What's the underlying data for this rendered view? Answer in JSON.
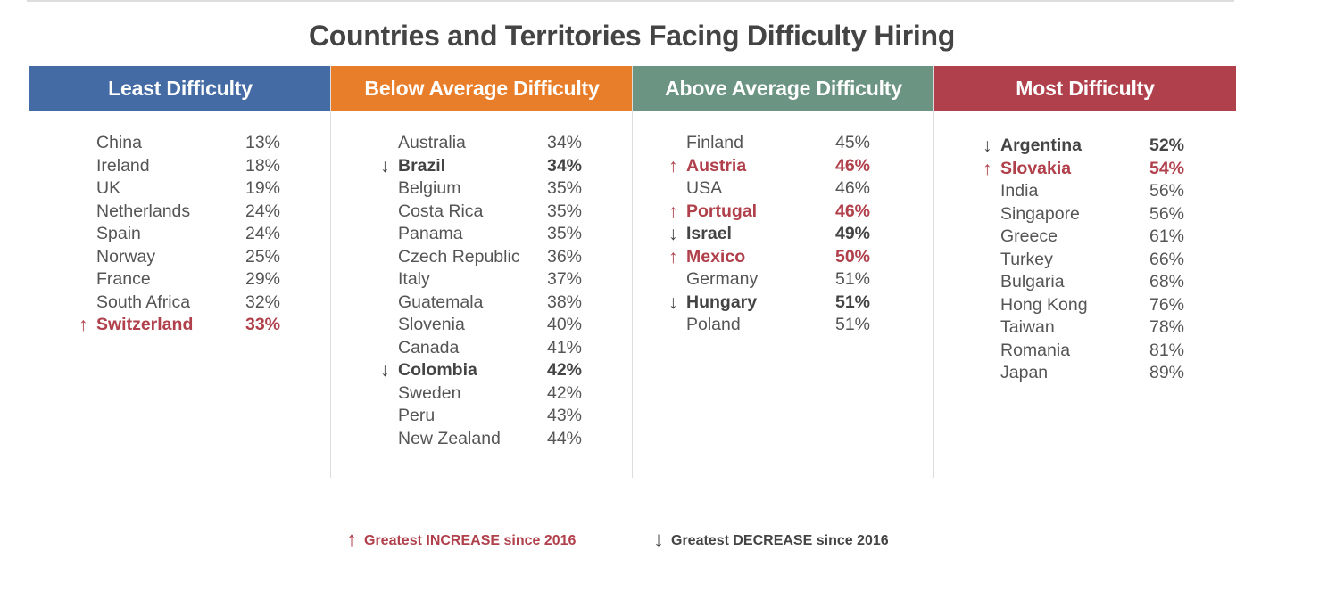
{
  "title": "Countries and Territories Facing Difficulty Hiring",
  "columns": [
    {
      "label": "Least Difficulty",
      "color": "#456ba5",
      "rows": [
        {
          "name": "China",
          "pct": "13%"
        },
        {
          "name": "Ireland",
          "pct": "18%"
        },
        {
          "name": "UK",
          "pct": "19%"
        },
        {
          "name": "Netherlands",
          "pct": "24%"
        },
        {
          "name": "Spain",
          "pct": "24%"
        },
        {
          "name": "Norway",
          "pct": "25%"
        },
        {
          "name": "France",
          "pct": "29%"
        },
        {
          "name": "South Africa",
          "pct": "32%"
        },
        {
          "name": "Switzerland",
          "pct": "33%",
          "trend": "up"
        }
      ]
    },
    {
      "label": "Below Average Difficulty",
      "color": "#e87e2a",
      "rows": [
        {
          "name": "Australia",
          "pct": "34%"
        },
        {
          "name": "Brazil",
          "pct": "34%",
          "trend": "down"
        },
        {
          "name": "Belgium",
          "pct": "35%"
        },
        {
          "name": "Costa Rica",
          "pct": "35%"
        },
        {
          "name": "Panama",
          "pct": "35%"
        },
        {
          "name": "Czech Republic",
          "pct": "36%"
        },
        {
          "name": "Italy",
          "pct": "37%"
        },
        {
          "name": "Guatemala",
          "pct": "38%"
        },
        {
          "name": "Slovenia",
          "pct": "40%"
        },
        {
          "name": "Canada",
          "pct": "41%"
        },
        {
          "name": "Colombia",
          "pct": "42%",
          "trend": "down"
        },
        {
          "name": "Sweden",
          "pct": "42%"
        },
        {
          "name": "Peru",
          "pct": "43%"
        },
        {
          "name": "New Zealand",
          "pct": "44%"
        }
      ]
    },
    {
      "label": "Above Average Difficulty",
      "color": "#6c9482",
      "rows": [
        {
          "name": "Finland",
          "pct": "45%"
        },
        {
          "name": "Austria",
          "pct": "46%",
          "trend": "up"
        },
        {
          "name": "USA",
          "pct": "46%"
        },
        {
          "name": "Portugal",
          "pct": "46%",
          "trend": "up"
        },
        {
          "name": "Israel",
          "pct": "49%",
          "trend": "down"
        },
        {
          "name": "Mexico",
          "pct": "50%",
          "trend": "up"
        },
        {
          "name": "Germany",
          "pct": "51%"
        },
        {
          "name": "Hungary",
          "pct": "51%",
          "trend": "down"
        },
        {
          "name": "Poland",
          "pct": "51%"
        }
      ]
    },
    {
      "label": "Most Difficulty",
      "color": "#b0404b",
      "rows": [
        {
          "name": "Argentina",
          "pct": "52%",
          "trend": "down"
        },
        {
          "name": "Slovakia",
          "pct": "54%",
          "trend": "up"
        },
        {
          "name": "India",
          "pct": "56%"
        },
        {
          "name": "Singapore",
          "pct": "56%"
        },
        {
          "name": "Greece",
          "pct": "61%"
        },
        {
          "name": "Turkey",
          "pct": "66%"
        },
        {
          "name": "Bulgaria",
          "pct": "68%"
        },
        {
          "name": "Hong Kong",
          "pct": "76%"
        },
        {
          "name": "Taiwan",
          "pct": "78%"
        },
        {
          "name": "Romania",
          "pct": "81%"
        },
        {
          "name": "Japan",
          "pct": "89%"
        }
      ]
    }
  ],
  "legend": {
    "up_arrow": "↑",
    "up_label": "Greatest INCREASE since 2016",
    "down_arrow": "↓",
    "down_label": "Greatest DECREASE since 2016",
    "up_color": "#b0404b",
    "down_color": "#444"
  }
}
